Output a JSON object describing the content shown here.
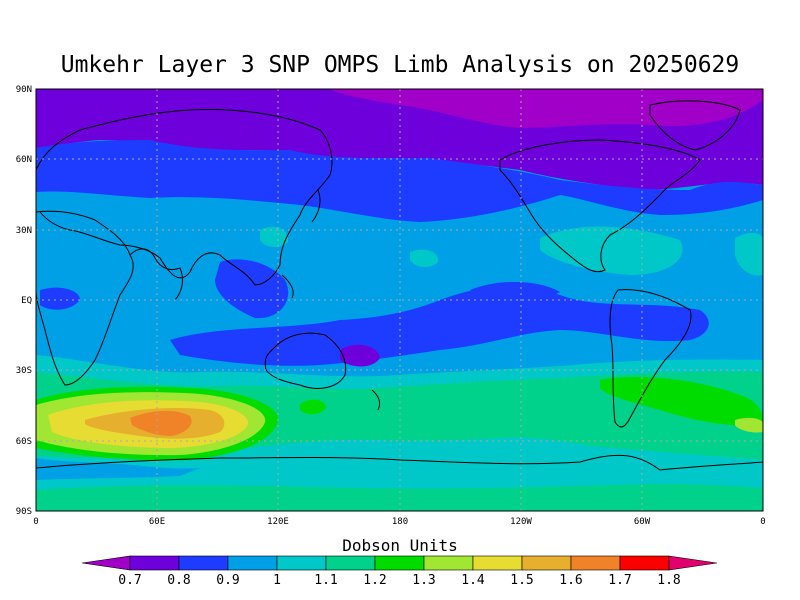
{
  "title": "Umkehr Layer 3 SNP OMPS Limb Analysis on 20250629",
  "map": {
    "projection": "equirectangular",
    "lon_range": [
      0,
      360
    ],
    "lat_range": [
      -90,
      90
    ],
    "lat_ticks": [
      "90N",
      "60N",
      "30N",
      "EQ",
      "30S",
      "60S",
      "90S"
    ],
    "lon_ticks": [
      "0",
      "60E",
      "120E",
      "180",
      "120W",
      "60W",
      "0"
    ],
    "grid": true
  },
  "colorbar": {
    "title": "Dobson Units",
    "levels": [
      "0.7",
      "0.8",
      "0.9",
      "1",
      "1.1",
      "1.2",
      "1.3",
      "1.4",
      "1.5",
      "1.6",
      "1.7",
      "1.8"
    ],
    "colors": [
      "#a000c8",
      "#6e00dc",
      "#1e3cff",
      "#00a0e6",
      "#00c8c8",
      "#00d28c",
      "#00dc00",
      "#a0e632",
      "#e6dc32",
      "#e6af2d",
      "#f08228",
      "#fa0000",
      "#e0006e"
    ]
  }
}
